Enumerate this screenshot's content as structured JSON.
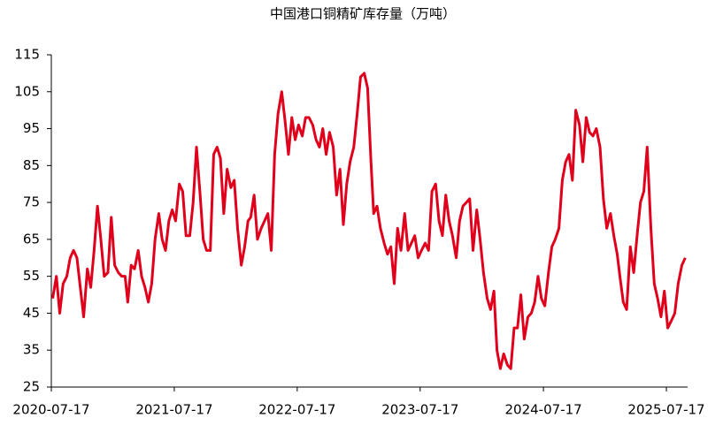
{
  "chart_data": {
    "type": "line",
    "title": "中国港口铜精矿库存量（万吨）",
    "x": [
      "2020-07-21",
      "2020-08-01",
      "2020-08-11",
      "2020-08-21",
      "2020-09-01",
      "2020-09-11",
      "2020-09-21",
      "2020-10-01",
      "2020-10-11",
      "2020-10-21",
      "2020-11-01",
      "2020-11-11",
      "2020-11-21",
      "2020-12-01",
      "2020-12-11",
      "2020-12-21",
      "2021-01-01",
      "2021-01-11",
      "2021-01-21",
      "2021-02-01",
      "2021-02-11",
      "2021-02-21",
      "2021-03-01",
      "2021-03-11",
      "2021-03-21",
      "2021-04-01",
      "2021-04-11",
      "2021-04-21",
      "2021-05-01",
      "2021-05-11",
      "2021-05-21",
      "2021-06-01",
      "2021-06-11",
      "2021-06-21",
      "2021-07-01",
      "2021-07-11",
      "2021-07-21",
      "2021-08-01",
      "2021-08-11",
      "2021-08-21",
      "2021-09-01",
      "2021-09-11",
      "2021-09-21",
      "2021-10-01",
      "2021-10-11",
      "2021-10-21",
      "2021-11-01",
      "2021-11-11",
      "2021-11-21",
      "2021-12-01",
      "2021-12-11",
      "2021-12-21",
      "2022-01-01",
      "2022-01-11",
      "2022-01-21",
      "2022-02-01",
      "2022-02-11",
      "2022-02-21",
      "2022-03-01",
      "2022-03-11",
      "2022-03-21",
      "2022-04-01",
      "2022-04-11",
      "2022-04-21",
      "2022-05-01",
      "2022-05-11",
      "2022-05-21",
      "2022-06-01",
      "2022-06-11",
      "2022-06-21",
      "2022-07-01",
      "2022-07-11",
      "2022-07-21",
      "2022-08-01",
      "2022-08-11",
      "2022-08-21",
      "2022-09-01",
      "2022-09-11",
      "2022-09-21",
      "2022-10-01",
      "2022-10-11",
      "2022-10-21",
      "2022-11-01",
      "2022-11-11",
      "2022-11-21",
      "2022-12-01",
      "2022-12-11",
      "2022-12-21",
      "2023-01-01",
      "2023-01-11",
      "2023-01-21",
      "2023-02-01",
      "2023-02-11",
      "2023-02-21",
      "2023-03-01",
      "2023-03-11",
      "2023-03-21",
      "2023-04-01",
      "2023-04-11",
      "2023-04-21",
      "2023-05-01",
      "2023-05-11",
      "2023-05-21",
      "2023-06-01",
      "2023-06-11",
      "2023-06-21",
      "2023-07-01",
      "2023-07-11",
      "2023-07-21",
      "2023-08-01",
      "2023-08-11",
      "2023-08-21",
      "2023-09-01",
      "2023-09-11",
      "2023-09-21",
      "2023-10-01",
      "2023-10-11",
      "2023-10-21",
      "2023-11-01",
      "2023-11-11",
      "2023-11-21",
      "2023-12-01",
      "2023-12-11",
      "2023-12-21",
      "2024-01-01",
      "2024-01-11",
      "2024-01-21",
      "2024-02-01",
      "2024-02-11",
      "2024-02-21",
      "2024-03-01",
      "2024-03-11",
      "2024-03-21",
      "2024-04-01",
      "2024-04-11",
      "2024-04-21",
      "2024-05-01",
      "2024-05-11",
      "2024-05-21",
      "2024-06-01",
      "2024-06-11",
      "2024-06-21",
      "2024-07-01",
      "2024-07-11",
      "2024-07-21",
      "2024-08-01",
      "2024-08-11",
      "2024-08-21",
      "2024-09-01",
      "2024-09-11",
      "2024-09-21",
      "2024-10-01",
      "2024-10-11",
      "2024-10-21",
      "2024-11-01",
      "2024-11-11",
      "2024-11-21",
      "2024-12-01",
      "2024-12-11",
      "2024-12-21",
      "2025-01-01",
      "2025-01-11",
      "2025-01-21",
      "2025-02-01",
      "2025-02-11",
      "2025-02-21",
      "2025-03-01",
      "2025-03-11",
      "2025-03-21",
      "2025-04-01",
      "2025-04-11",
      "2025-04-21",
      "2025-05-01",
      "2025-05-11",
      "2025-05-21",
      "2025-06-01",
      "2025-06-11",
      "2025-06-21",
      "2025-07-01",
      "2025-07-11",
      "2025-07-21",
      "2025-08-01",
      "2025-08-11",
      "2025-08-21",
      "2025-09-01",
      "2025-09-11"
    ],
    "series": [
      {
        "color": "#e0001b",
        "values": [
          49,
          55,
          45,
          53,
          55,
          60,
          62,
          60,
          52,
          44,
          57,
          52,
          62,
          74,
          65,
          55,
          56,
          71,
          58,
          56,
          55,
          55,
          48,
          58,
          57,
          62,
          55,
          52,
          48,
          53,
          65,
          72,
          65,
          62,
          70,
          73,
          70,
          80,
          78,
          66,
          66,
          75,
          90,
          78,
          65,
          62,
          62,
          88,
          90,
          87,
          72,
          84,
          79,
          81,
          68,
          58,
          63,
          70,
          71,
          77,
          65,
          68,
          70,
          72,
          62,
          88,
          99,
          105,
          97,
          88,
          98,
          92,
          96,
          93,
          98,
          98,
          96,
          92,
          90,
          95,
          88,
          94,
          90,
          77,
          84,
          69,
          80,
          86,
          90,
          99,
          109,
          110,
          106,
          86,
          72,
          74,
          68,
          64,
          61,
          63,
          53,
          68,
          62,
          72,
          62,
          64,
          66,
          60,
          62,
          64,
          62,
          78,
          80,
          70,
          66,
          77,
          70,
          66,
          60,
          70,
          74,
          75,
          76,
          62,
          73,
          65,
          56,
          49,
          46,
          51,
          35,
          30,
          34,
          31,
          30,
          41,
          41,
          50,
          38,
          44,
          45,
          48,
          55,
          49,
          47,
          56,
          63,
          65,
          68,
          81,
          86,
          88,
          81,
          100,
          96,
          86,
          98,
          94,
          93,
          95,
          90,
          76,
          68,
          72,
          66,
          61,
          55,
          48,
          46,
          63,
          56,
          66,
          75,
          78,
          90,
          68,
          53,
          49,
          44,
          51,
          41,
          43,
          45,
          53,
          58,
          60
        ]
      }
    ],
    "xlim": [
      "2020-07-17",
      "2025-09-18"
    ],
    "xticks": [
      "2020-07-17",
      "2021-07-17",
      "2022-07-17",
      "2023-07-17",
      "2024-07-17",
      "2025-07-17"
    ],
    "ylim": [
      25,
      115
    ],
    "yticks": [
      25,
      35,
      45,
      55,
      65,
      75,
      85,
      95,
      105,
      115
    ]
  }
}
